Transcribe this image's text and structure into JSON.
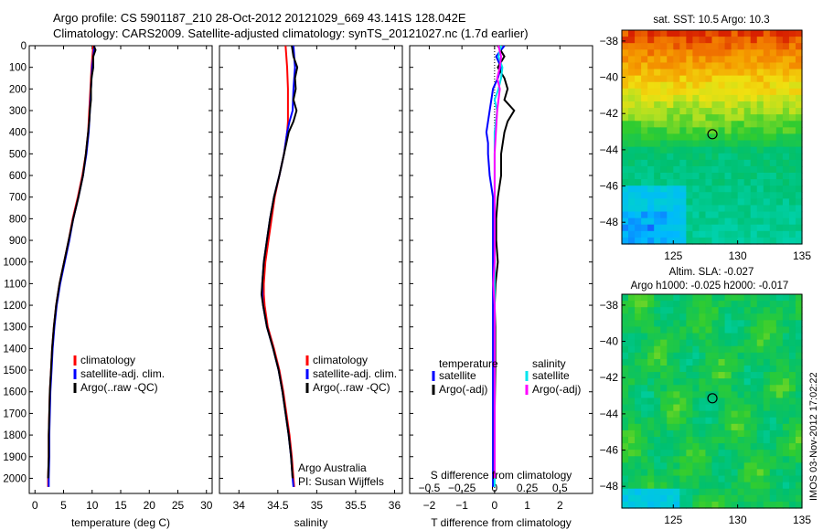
{
  "figure": {
    "title_line1": "Argo profile: CS 5901187_210 28-Oct-2012 20121029_669 43.141S 128.042E",
    "title_line2": "Climatology: CARS2009. Satellite-adjusted climatology: synTS_20121027.nc (1.7d earlier)",
    "credit": "Argo Australia",
    "pi": "PI: Susan Wijffels",
    "footer": "IMOS 03-Nov-2012 17:02:22"
  },
  "colors": {
    "climatology": "#ff0000",
    "satellite": "#0000ff",
    "argo": "#000000",
    "sal_satellite": "#00e5ee",
    "sal_argo": "#ff00ff"
  },
  "chart_data": [
    {
      "type": "line",
      "xlabel": "temperature (deg C)",
      "ylabel": "",
      "xlim": [
        -1,
        31
      ],
      "ylim": [
        2070,
        0
      ],
      "xticks": [
        "0",
        "5",
        "10",
        "15",
        "20",
        "25",
        "30"
      ],
      "yticks": [
        "0",
        "100",
        "200",
        "300",
        "400",
        "500",
        "600",
        "700",
        "800",
        "900",
        "1000",
        "1100",
        "1200",
        "1300",
        "1400",
        "1500",
        "1600",
        "1700",
        "1800",
        "1900",
        "2000"
      ],
      "legend": [
        "climatology",
        "satellite-adj. clim.",
        "Argo(..raw -QC)"
      ],
      "legend_position": "lower-center",
      "series": [
        {
          "name": "climatology",
          "depth": [
            0,
            100,
            200,
            300,
            400,
            500,
            600,
            700,
            800,
            900,
            1000,
            1100,
            1200,
            1300,
            1400,
            1500,
            1600,
            1700,
            1800,
            1900,
            2000,
            2040
          ],
          "values": [
            10.2,
            9.9,
            9.7,
            9.5,
            9.3,
            8.9,
            8.3,
            7.5,
            6.6,
            5.9,
            5.1,
            4.3,
            3.7,
            3.3,
            3.0,
            2.8,
            2.6,
            2.5,
            2.4,
            2.4,
            2.3,
            2.3
          ]
        },
        {
          "name": "satellite-adj. clim.",
          "depth": [
            0,
            100,
            200,
            300,
            400,
            500,
            600,
            700,
            800,
            900,
            1000,
            1100,
            1200,
            1300,
            1400,
            1500,
            1600,
            1700,
            1800,
            1900,
            2000,
            2040
          ],
          "values": [
            10.4,
            10.0,
            9.8,
            9.6,
            9.4,
            9.0,
            8.4,
            7.6,
            6.7,
            6.0,
            5.2,
            4.4,
            3.8,
            3.4,
            3.1,
            2.9,
            2.7,
            2.6,
            2.5,
            2.5,
            2.4,
            2.4
          ]
        },
        {
          "name": "Argo(..raw -QC)",
          "depth": [
            0,
            20,
            50,
            100,
            150,
            200,
            250,
            300,
            350,
            400,
            450,
            500,
            600,
            700,
            800,
            900,
            1000,
            1100,
            1200,
            1300,
            1400,
            1500,
            1600,
            1700,
            1800,
            1900,
            2000
          ],
          "values": [
            10.3,
            10.6,
            10.2,
            10.2,
            9.9,
            9.8,
            9.8,
            9.6,
            9.5,
            9.3,
            9.1,
            8.9,
            8.4,
            7.6,
            6.7,
            5.9,
            5.1,
            4.3,
            3.7,
            3.3,
            3.0,
            2.8,
            2.6,
            2.5,
            2.4,
            2.4,
            2.3
          ]
        }
      ]
    },
    {
      "type": "line",
      "xlabel": "salinity",
      "xlim": [
        33.75,
        36.1
      ],
      "ylim": [
        2070,
        0
      ],
      "xticks": [
        "34",
        "34.5",
        "35",
        "35.5",
        "36"
      ],
      "legend": [
        "climatology",
        "satellite-adj. clim.",
        "Argo(..raw -QC)"
      ],
      "legend_position": "lower-center",
      "series": [
        {
          "name": "climatology",
          "depth": [
            0,
            100,
            200,
            300,
            350,
            400,
            450,
            500,
            600,
            700,
            800,
            900,
            1000,
            1100,
            1150,
            1200,
            1300,
            1400,
            1500,
            1600,
            1700,
            1800,
            1900,
            2000,
            2040
          ],
          "values": [
            34.6,
            34.62,
            34.63,
            34.63,
            34.63,
            34.62,
            34.6,
            34.58,
            34.52,
            34.46,
            34.42,
            34.38,
            34.34,
            34.32,
            34.32,
            34.33,
            34.37,
            34.45,
            34.52,
            34.57,
            34.61,
            34.65,
            34.68,
            34.7,
            34.71
          ]
        },
        {
          "name": "satellite-adj. clim.",
          "depth": [
            0,
            100,
            200,
            300,
            350,
            400,
            450,
            500,
            600,
            700,
            800,
            900,
            1000,
            1100,
            1150,
            1200,
            1300,
            1400,
            1500,
            1600,
            1700,
            1800,
            1900,
            2000,
            2040
          ],
          "values": [
            34.7,
            34.72,
            34.7,
            34.69,
            34.65,
            34.62,
            34.6,
            34.58,
            34.52,
            34.45,
            34.4,
            34.36,
            34.32,
            34.3,
            34.3,
            34.31,
            34.36,
            34.44,
            34.51,
            34.56,
            34.6,
            34.64,
            34.67,
            34.69,
            34.7
          ]
        },
        {
          "name": "Argo(..raw -QC)",
          "depth": [
            0,
            50,
            100,
            150,
            200,
            250,
            300,
            350,
            400,
            450,
            500,
            600,
            700,
            800,
            900,
            1000,
            1100,
            1150,
            1200,
            1300,
            1400,
            1500,
            1600,
            1700,
            1800,
            1900,
            2000
          ],
          "values": [
            34.68,
            34.7,
            34.75,
            34.72,
            34.73,
            34.7,
            34.74,
            34.7,
            34.64,
            34.61,
            34.58,
            34.52,
            34.45,
            34.4,
            34.36,
            34.32,
            34.3,
            34.29,
            34.31,
            34.36,
            34.44,
            34.51,
            34.56,
            34.6,
            34.64,
            34.67,
            34.69
          ]
        }
      ]
    },
    {
      "type": "line",
      "xlabel": "T difference from climatology",
      "x2label": "S difference from climatology",
      "xlim": [
        -2.6,
        3.0
      ],
      "ylim": [
        2070,
        0
      ],
      "xticks": [
        "-2",
        "-1",
        "0",
        "1",
        "2"
      ],
      "x2ticks": [
        "-0.5",
        "-0.25",
        "0",
        "0.25",
        "0.5"
      ],
      "legend": [
        "temperature",
        "satellite",
        "Argo(-adj)",
        "salinity",
        "satellite",
        "Argo(-adj)"
      ],
      "legend_position": "lower-center",
      "series": [
        {
          "name": "temperature satellite",
          "depth": [
            0,
            50,
            100,
            150,
            200,
            250,
            300,
            350,
            400,
            450,
            500,
            600,
            700,
            800,
            900,
            1000,
            1100,
            1200,
            1300,
            1500,
            1700,
            1900,
            2040
          ],
          "values": [
            0.3,
            0.05,
            0.2,
            0.1,
            -0.05,
            -0.1,
            -0.15,
            -0.2,
            -0.25,
            -0.2,
            -0.2,
            -0.15,
            -0.05,
            -0.05,
            -0.05,
            -0.05,
            -0.05,
            -0.05,
            -0.05,
            -0.05,
            -0.05,
            -0.05,
            -0.05
          ]
        },
        {
          "name": "temperature Argo(-adj)",
          "depth": [
            0,
            50,
            100,
            150,
            200,
            250,
            300,
            350,
            400,
            450,
            500,
            600,
            700,
            800,
            900,
            1000,
            1100,
            1200,
            1300,
            1500,
            1700,
            1900,
            2000
          ],
          "values": [
            0.1,
            0.3,
            0.1,
            0.3,
            0.4,
            0.3,
            0.6,
            0.4,
            0.3,
            0.25,
            0.2,
            0.2,
            0.1,
            0.05,
            0.05,
            0.1,
            0.03,
            0.0,
            0.02,
            0.02,
            0.0,
            0.0,
            0.0
          ]
        },
        {
          "name": "salinity satellite",
          "depth": [
            0,
            50,
            100,
            150,
            200,
            250,
            300,
            400,
            500,
            600,
            700,
            800,
            900,
            1000,
            1100,
            1200,
            1300,
            1500,
            1700,
            1900,
            2040
          ],
          "values": [
            0.05,
            0.03,
            0.06,
            0.05,
            0.03,
            0.0,
            0.02,
            0.0,
            0.0,
            0.0,
            0.0,
            0.0,
            0.0,
            0.0,
            0.0,
            0.0,
            0.0,
            0.0,
            0.0,
            0.0,
            0.0
          ]
        },
        {
          "name": "salinity Argo(-adj)",
          "depth": [
            0,
            50,
            100,
            150,
            200,
            300,
            400,
            500,
            600,
            700,
            800,
            900,
            1000,
            1100,
            1200,
            1300,
            1500,
            1700,
            1900,
            2000
          ],
          "values": [
            0.03,
            0.05,
            0.04,
            0.02,
            0.04,
            0.02,
            0.01,
            0.0,
            0.0,
            0.0,
            0.0,
            0.0,
            0.0,
            -0.01,
            0.0,
            0.0,
            0.0,
            0.0,
            0.0,
            0.0
          ]
        }
      ]
    },
    {
      "type": "heatmap",
      "title": "sat. SST: 10.5 Argo: 10.3",
      "xlim": [
        121,
        135
      ],
      "ylim": [
        -49.2,
        -37.4
      ],
      "xticks": [
        "125",
        "130",
        "135"
      ],
      "yticks": [
        "-38",
        "-40",
        "-42",
        "-44",
        "-46",
        "-48"
      ],
      "marker": {
        "lon": 128.04,
        "lat": -43.14
      }
    },
    {
      "type": "heatmap",
      "title": "Altim. SLA: -0.027",
      "subtitle": "Argo h1000: -0.025 h2000: -0.017",
      "xlim": [
        121,
        135
      ],
      "ylim": [
        -49.2,
        -37.4
      ],
      "xticks": [
        "125",
        "130",
        "135"
      ],
      "yticks": [
        "-38",
        "-40",
        "-42",
        "-44",
        "-46",
        "-48"
      ],
      "marker": {
        "lon": 128.04,
        "lat": -43.14
      }
    }
  ]
}
